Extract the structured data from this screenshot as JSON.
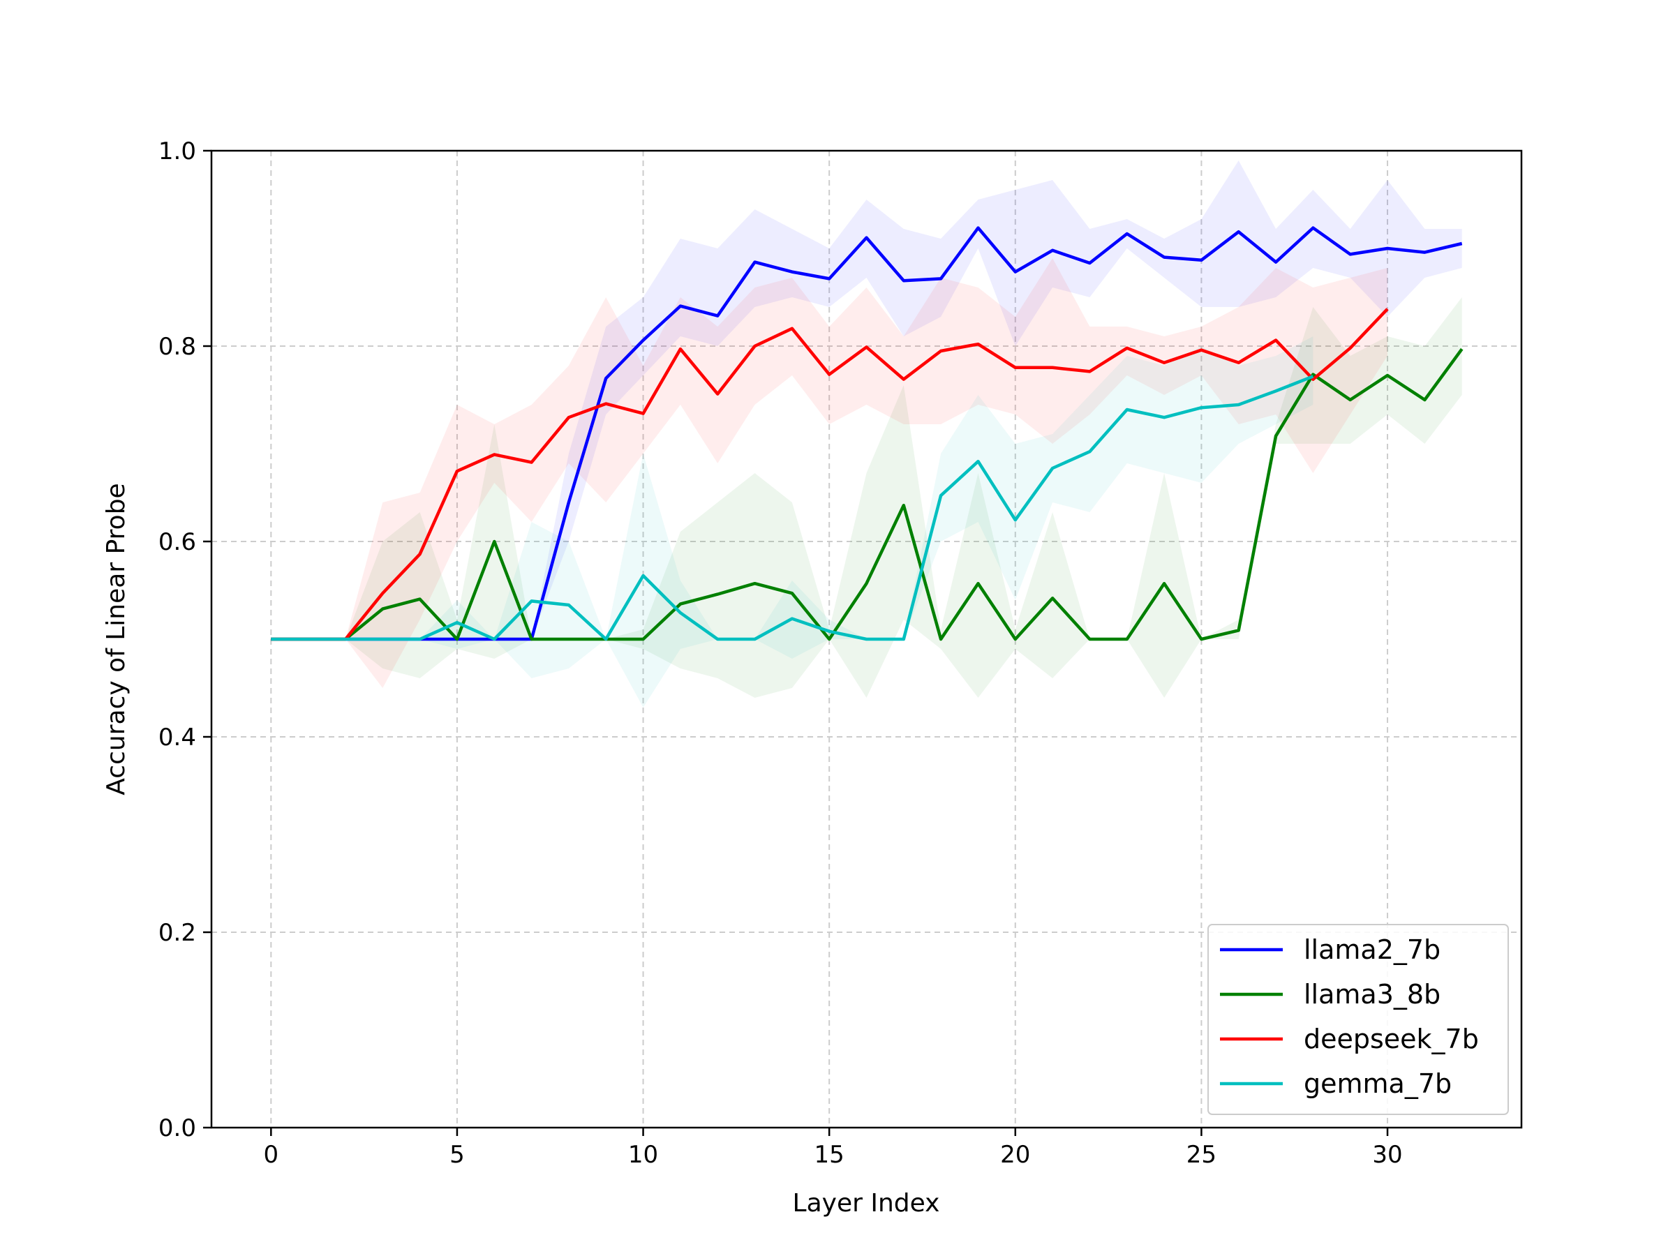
{
  "chart_data": {
    "type": "line",
    "title": "",
    "xlabel": "Layer Index",
    "ylabel": "Accuracy of Linear Probe",
    "xlim": [
      -1.6,
      33.6
    ],
    "ylim": [
      0.0,
      1.0
    ],
    "xticks": [
      0,
      5,
      10,
      15,
      20,
      25,
      30
    ],
    "yticks": [
      0.0,
      0.2,
      0.4,
      0.6,
      0.8,
      1.0
    ],
    "xtick_labels": [
      "0",
      "5",
      "10",
      "15",
      "20",
      "25",
      "30"
    ],
    "ytick_labels": [
      "0.0",
      "0.2",
      "0.4",
      "0.6",
      "0.8",
      "1.0"
    ],
    "grid": true,
    "legend_position": "lower-right",
    "series": [
      {
        "name": "llama2_7b",
        "color": "#0000ff",
        "x": [
          0,
          1,
          2,
          3,
          4,
          5,
          6,
          7,
          8,
          9,
          10,
          11,
          12,
          13,
          14,
          15,
          16,
          17,
          18,
          19,
          20,
          21,
          22,
          23,
          24,
          25,
          26,
          27,
          28,
          29,
          30,
          31,
          32
        ],
        "values": [
          0.5,
          0.5,
          0.5,
          0.5,
          0.5,
          0.5,
          0.5,
          0.5,
          0.64,
          0.767,
          0.806,
          0.841,
          0.831,
          0.886,
          0.876,
          0.869,
          0.911,
          0.867,
          0.869,
          0.921,
          0.876,
          0.898,
          0.885,
          0.915,
          0.891,
          0.888,
          0.917,
          0.886,
          0.921,
          0.894,
          0.9,
          0.896,
          0.905
        ],
        "lower": [
          0.5,
          0.5,
          0.5,
          0.5,
          0.5,
          0.5,
          0.5,
          0.5,
          0.6,
          0.73,
          0.77,
          0.81,
          0.8,
          0.84,
          0.85,
          0.84,
          0.87,
          0.81,
          0.83,
          0.9,
          0.8,
          0.86,
          0.85,
          0.9,
          0.87,
          0.84,
          0.84,
          0.85,
          0.88,
          0.87,
          0.83,
          0.87,
          0.88
        ],
        "upper": [
          0.5,
          0.5,
          0.5,
          0.5,
          0.5,
          0.5,
          0.5,
          0.5,
          0.69,
          0.82,
          0.85,
          0.91,
          0.9,
          0.94,
          0.92,
          0.9,
          0.95,
          0.92,
          0.91,
          0.95,
          0.96,
          0.97,
          0.92,
          0.93,
          0.91,
          0.93,
          0.99,
          0.92,
          0.96,
          0.92,
          0.97,
          0.92,
          0.92
        ]
      },
      {
        "name": "llama3_8b",
        "color": "#008000",
        "x": [
          0,
          1,
          2,
          3,
          4,
          5,
          6,
          7,
          8,
          9,
          10,
          11,
          12,
          13,
          14,
          15,
          16,
          17,
          18,
          19,
          20,
          21,
          22,
          23,
          24,
          25,
          26,
          27,
          28,
          29,
          30,
          31,
          32
        ],
        "values": [
          0.5,
          0.5,
          0.5,
          0.531,
          0.541,
          0.5,
          0.6,
          0.5,
          0.5,
          0.5,
          0.5,
          0.536,
          0.546,
          0.557,
          0.547,
          0.5,
          0.557,
          0.637,
          0.5,
          0.557,
          0.5,
          0.542,
          0.5,
          0.5,
          0.557,
          0.5,
          0.509,
          0.708,
          0.771,
          0.745,
          0.77,
          0.745,
          0.797
        ],
        "lower": [
          0.5,
          0.5,
          0.5,
          0.47,
          0.46,
          0.49,
          0.48,
          0.5,
          0.5,
          0.5,
          0.49,
          0.47,
          0.46,
          0.44,
          0.45,
          0.5,
          0.44,
          0.52,
          0.49,
          0.44,
          0.49,
          0.46,
          0.5,
          0.5,
          0.44,
          0.5,
          0.5,
          0.7,
          0.7,
          0.7,
          0.73,
          0.7,
          0.75
        ],
        "upper": [
          0.5,
          0.5,
          0.5,
          0.6,
          0.63,
          0.52,
          0.72,
          0.5,
          0.5,
          0.5,
          0.51,
          0.61,
          0.64,
          0.67,
          0.64,
          0.51,
          0.67,
          0.76,
          0.51,
          0.67,
          0.51,
          0.63,
          0.5,
          0.5,
          0.67,
          0.5,
          0.52,
          0.72,
          0.84,
          0.79,
          0.81,
          0.8,
          0.85
        ]
      },
      {
        "name": "deepseek_7b",
        "color": "#ff0000",
        "x": [
          0,
          1,
          2,
          3,
          4,
          5,
          6,
          7,
          8,
          9,
          10,
          11,
          12,
          13,
          14,
          15,
          16,
          17,
          18,
          19,
          20,
          21,
          22,
          23,
          24,
          25,
          26,
          27,
          28,
          29,
          30
        ],
        "values": [
          0.5,
          0.5,
          0.5,
          0.547,
          0.587,
          0.672,
          0.689,
          0.681,
          0.727,
          0.741,
          0.731,
          0.797,
          0.751,
          0.8,
          0.818,
          0.771,
          0.799,
          0.766,
          0.795,
          0.802,
          0.778,
          0.778,
          0.774,
          0.798,
          0.783,
          0.796,
          0.783,
          0.806,
          0.766,
          0.798,
          0.838
        ],
        "lower": [
          0.5,
          0.5,
          0.5,
          0.45,
          0.52,
          0.6,
          0.66,
          0.62,
          0.68,
          0.64,
          0.69,
          0.74,
          0.68,
          0.74,
          0.77,
          0.72,
          0.74,
          0.72,
          0.72,
          0.74,
          0.73,
          0.7,
          0.73,
          0.77,
          0.75,
          0.77,
          0.72,
          0.73,
          0.67,
          0.73,
          0.79
        ],
        "upper": [
          0.5,
          0.5,
          0.5,
          0.64,
          0.65,
          0.74,
          0.72,
          0.74,
          0.78,
          0.85,
          0.78,
          0.85,
          0.82,
          0.86,
          0.87,
          0.82,
          0.86,
          0.81,
          0.87,
          0.86,
          0.83,
          0.89,
          0.82,
          0.82,
          0.81,
          0.82,
          0.84,
          0.88,
          0.86,
          0.87,
          0.88
        ]
      },
      {
        "name": "gemma_7b",
        "color": "#00bfbf",
        "x": [
          0,
          1,
          2,
          3,
          4,
          5,
          6,
          7,
          8,
          9,
          10,
          11,
          12,
          13,
          14,
          15,
          16,
          17,
          18,
          19,
          20,
          21,
          22,
          23,
          24,
          25,
          26,
          27,
          28
        ],
        "values": [
          0.5,
          0.5,
          0.5,
          0.5,
          0.5,
          0.517,
          0.5,
          0.539,
          0.535,
          0.5,
          0.565,
          0.527,
          0.5,
          0.5,
          0.521,
          0.508,
          0.5,
          0.5,
          0.647,
          0.682,
          0.622,
          0.675,
          0.692,
          0.735,
          0.727,
          0.737,
          0.74,
          0.754,
          0.769
        ],
        "lower": [
          0.5,
          0.5,
          0.5,
          0.5,
          0.5,
          0.49,
          0.5,
          0.46,
          0.47,
          0.5,
          0.43,
          0.49,
          0.5,
          0.5,
          0.48,
          0.5,
          0.5,
          0.5,
          0.6,
          0.62,
          0.54,
          0.64,
          0.63,
          0.68,
          0.67,
          0.66,
          0.7,
          0.72,
          0.74
        ],
        "upper": [
          0.5,
          0.5,
          0.5,
          0.5,
          0.5,
          0.54,
          0.5,
          0.62,
          0.6,
          0.5,
          0.69,
          0.56,
          0.5,
          0.5,
          0.56,
          0.52,
          0.5,
          0.5,
          0.69,
          0.75,
          0.7,
          0.71,
          0.75,
          0.79,
          0.78,
          0.8,
          0.78,
          0.79,
          0.81
        ]
      }
    ]
  }
}
